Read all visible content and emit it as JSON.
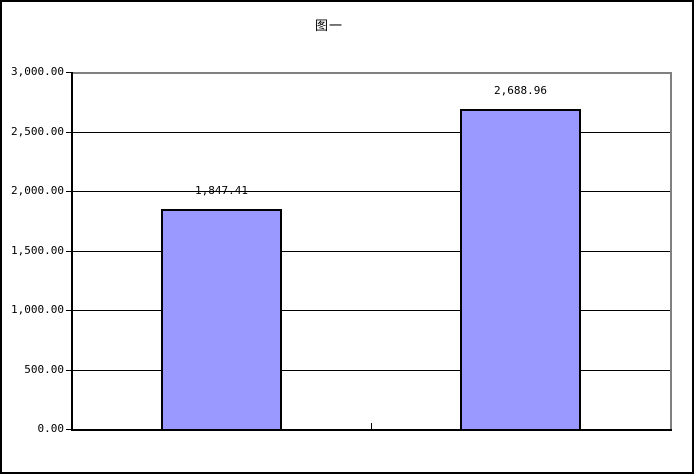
{
  "colors": {
    "bar_fill": "#9999FF",
    "bar_border": "#000000",
    "plot_border": "#808080",
    "grid": "#000000",
    "axis": "#000000",
    "background": "#FFFFFF",
    "text": "#000000"
  },
  "chart_data": {
    "type": "bar",
    "title": "图一",
    "categories": [
      "",
      ""
    ],
    "values": [
      1847.41,
      2688.96
    ],
    "value_labels": [
      "1,847.41",
      "2,688.96"
    ],
    "ylim": [
      0,
      3000
    ],
    "ytick_interval": 500,
    "ytick_labels": [
      "0.00",
      "500.00",
      "1,000.00",
      "1,500.00",
      "2,000.00",
      "2,500.00",
      "3,000.00"
    ],
    "xlabel": "",
    "ylabel": "",
    "grid": true,
    "legend": false
  }
}
